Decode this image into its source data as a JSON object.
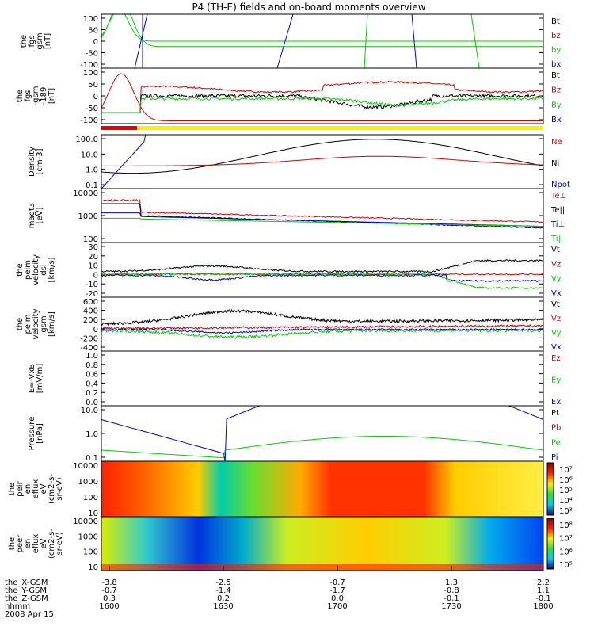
{
  "title": "P4 (TH-E) fields and on-board moments overview",
  "colors": {
    "black": "#000000",
    "red": "#d00000",
    "green": "#00cc00",
    "blue": "#0000cc",
    "yellow": "#ffee00",
    "bar_red": "#ee0000"
  },
  "chart_data": [
    {
      "type": "line",
      "ylabel": [
        "the",
        "fgs",
        "gsm",
        "[nT]"
      ],
      "y_ticks": [
        "100",
        "50",
        "0",
        "-50",
        "-100"
      ],
      "legend": [
        {
          "label": "Bt",
          "color": "#000000"
        },
        {
          "label": "bz",
          "color": "#d00000"
        },
        {
          "label": "by",
          "color": "#00cc00"
        },
        {
          "label": "bx",
          "color": "#0000cc"
        }
      ],
      "ylim": [
        -100,
        100
      ]
    },
    {
      "type": "line",
      "ylabel": [
        "the",
        "fgs",
        "-gsm",
        "-189",
        "[nT]"
      ],
      "y_ticks": [
        "100",
        "50",
        "0",
        "-50",
        "-100"
      ],
      "legend": [
        {
          "label": "Bt",
          "color": "#000000"
        },
        {
          "label": "Bz",
          "color": "#d00000"
        },
        {
          "label": "By",
          "color": "#00cc00"
        },
        {
          "label": "Bx",
          "color": "#0000cc"
        }
      ],
      "ylim": [
        -120,
        100
      ]
    },
    {
      "type": "line",
      "ylabel": [
        "Density",
        "[cm-3]"
      ],
      "y_ticks": [
        "100.0",
        "10.0",
        "1.0",
        "0.1"
      ],
      "legend": [
        {
          "label": "Ne",
          "color": "#d00000"
        },
        {
          "label": "Ni",
          "color": "#000000"
        },
        {
          "label": "Npot",
          "color": "#0000cc"
        }
      ],
      "scale": "log"
    },
    {
      "type": "line",
      "ylabel": [
        "magt3",
        "[eV]"
      ],
      "y_ticks": [
        "10000",
        "1000",
        "100"
      ],
      "legend": [
        {
          "label": "Te⊥",
          "color": "#d00000"
        },
        {
          "label": "Te||",
          "color": "#000000"
        },
        {
          "label": "Ti⊥",
          "color": "#0000cc"
        },
        {
          "label": "Ti||",
          "color": "#00cc00"
        }
      ],
      "scale": "log"
    },
    {
      "type": "line",
      "ylabel": [
        "the",
        "peim",
        "velocity",
        "dsl",
        "[km/s]"
      ],
      "y_ticks": [
        "30",
        "20",
        "10",
        "0",
        "-10",
        "-20"
      ],
      "legend": [
        {
          "label": "Vt",
          "color": "#000000"
        },
        {
          "label": "Vz",
          "color": "#d00000"
        },
        {
          "label": "Vy",
          "color": "#00cc00"
        },
        {
          "label": "Vx",
          "color": "#0000cc"
        }
      ],
      "ylim": [
        -25,
        30
      ]
    },
    {
      "type": "line",
      "ylabel": [
        "the",
        "peim",
        "velocity",
        "gsm",
        "[km/s]"
      ],
      "y_ticks": [
        "600",
        "400",
        "200",
        "0",
        "-200",
        "-400"
      ],
      "legend": [
        {
          "label": "Vt",
          "color": "#000000"
        },
        {
          "label": "Vz",
          "color": "#d00000"
        },
        {
          "label": "Vy",
          "color": "#00cc00"
        },
        {
          "label": "Vx",
          "color": "#0000cc"
        }
      ],
      "ylim": [
        -400,
        600
      ]
    },
    {
      "type": "line",
      "ylabel": [
        "E=-VxB",
        "[mV/m]"
      ],
      "y_ticks": [
        "1.0",
        "0.8",
        "0.6",
        "0.4",
        "0.2",
        "0.0"
      ],
      "legend": [
        {
          "label": "Ez",
          "color": "#d00000"
        },
        {
          "label": "Ey",
          "color": "#00cc00"
        },
        {
          "label": "Ex",
          "color": "#0000cc"
        }
      ],
      "ylim": [
        0,
        1
      ]
    },
    {
      "type": "line",
      "ylabel": [
        "Pressure",
        "[nPa]"
      ],
      "y_ticks": [
        "10.0",
        "1.0",
        "0.1"
      ],
      "legend": [
        {
          "label": "Pt",
          "color": "#000000"
        },
        {
          "label": "Pb",
          "color": "#d00000"
        },
        {
          "label": "Pe",
          "color": "#00cc00"
        },
        {
          "label": "Pi",
          "color": "#0000cc"
        }
      ],
      "scale": "log"
    },
    {
      "type": "heatmap",
      "ylabel": [
        "the",
        "peir",
        "en",
        "eflux",
        "eV",
        "(cm2-s-",
        "sr-eV)"
      ],
      "y_ticks": [
        "10000",
        "1000",
        "100",
        "10"
      ],
      "colorbar_ticks": [
        "10⁷",
        "10⁶",
        "10⁵",
        "10⁴",
        "10³"
      ],
      "scale": "log"
    },
    {
      "type": "heatmap",
      "ylabel": [
        "the",
        "peer",
        "en",
        "eflux",
        "eV",
        "(cm2-s-",
        "sr-eV)"
      ],
      "y_ticks": [
        "10000",
        "1000",
        "100",
        "10"
      ],
      "colorbar_ticks": [
        "10⁸",
        "10⁷",
        "10⁶",
        "10⁵"
      ],
      "scale": "log"
    }
  ],
  "x_axis": {
    "rows": [
      {
        "label": "the_X-GSM",
        "values": [
          "-3.8",
          "-2.5",
          "-0.7",
          "1.3",
          "2.2"
        ]
      },
      {
        "label": "the_Y-GSM",
        "values": [
          "-0.7",
          "-1.4",
          "-1.7",
          "-0.8",
          "1.1"
        ]
      },
      {
        "label": "the_Z-GSM",
        "values": [
          "0.3",
          "0.2",
          "0.0",
          "-0.1",
          "-0.1"
        ]
      },
      {
        "label": "hhmm",
        "values": [
          "1600",
          "1630",
          "1700",
          "1730",
          "1800"
        ]
      }
    ],
    "date": "2008 Apr 15"
  }
}
